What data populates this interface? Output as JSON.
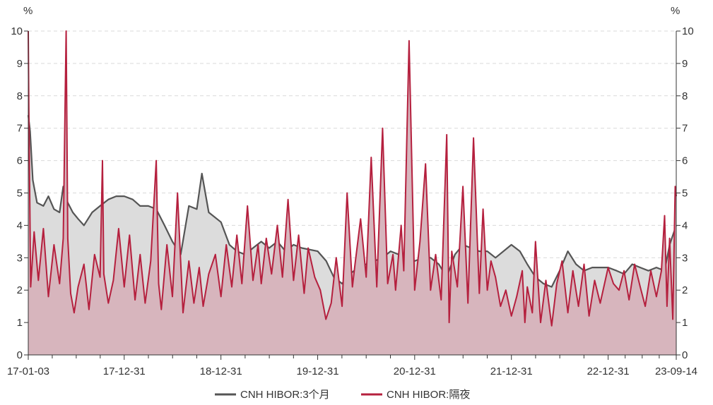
{
  "chart_data": {
    "type": "area",
    "left_axis_unit": "%",
    "right_axis_unit": "%",
    "y_range": [
      0,
      10
    ],
    "y_ticks": [
      0,
      1,
      2,
      3,
      4,
      5,
      6,
      7,
      8,
      9,
      10
    ],
    "x_range": [
      "2017-01-03",
      "2023-09-14"
    ],
    "x_tick_labels": [
      "17-01-03",
      "17-12-31",
      "18-12-31",
      "19-12-31",
      "20-12-31",
      "21-12-31",
      "22-12-31",
      "23-09-14"
    ],
    "x_tick_dates": [
      "2017-01-03",
      "2017-12-31",
      "2018-12-31",
      "2019-12-31",
      "2020-12-31",
      "2021-12-31",
      "2022-12-31",
      "2023-09-14"
    ],
    "grid": "horizontal dashed",
    "legend_position": "bottom-center",
    "colors": {
      "three_month": "#555555",
      "three_month_fill": "#dcdcdc",
      "overnight": "#b5203e",
      "overnight_fill": "#d7b5bd"
    },
    "series": [
      {
        "name": "CNH HIBOR:3个月",
        "x": [
          "2017-01-03",
          "2017-01-10",
          "2017-01-20",
          "2017-02-05",
          "2017-03-01",
          "2017-03-20",
          "2017-04-10",
          "2017-05-01",
          "2017-05-15",
          "2017-06-01",
          "2017-06-20",
          "2017-07-10",
          "2017-08-01",
          "2017-09-01",
          "2017-10-01",
          "2017-11-01",
          "2017-12-01",
          "2017-12-31",
          "2018-02-01",
          "2018-03-01",
          "2018-04-01",
          "2018-05-01",
          "2018-06-01",
          "2018-07-01",
          "2018-08-01",
          "2018-09-01",
          "2018-10-01",
          "2018-10-20",
          "2018-11-15",
          "2018-12-31",
          "2019-02-01",
          "2019-03-01",
          "2019-04-01",
          "2019-05-01",
          "2019-06-01",
          "2019-07-01",
          "2019-08-01",
          "2019-09-01",
          "2019-10-01",
          "2019-11-01",
          "2019-12-31",
          "2020-02-01",
          "2020-03-01",
          "2020-04-01",
          "2020-05-01",
          "2020-06-01",
          "2020-07-01",
          "2020-08-01",
          "2020-09-01",
          "2020-10-01",
          "2020-11-01",
          "2020-12-31",
          "2021-02-01",
          "2021-03-01",
          "2021-04-01",
          "2021-05-01",
          "2021-06-01",
          "2021-07-01",
          "2021-08-01",
          "2021-09-01",
          "2021-10-01",
          "2021-11-01",
          "2021-12-31",
          "2022-02-01",
          "2022-03-01",
          "2022-04-01",
          "2022-05-01",
          "2022-06-01",
          "2022-07-01",
          "2022-08-01",
          "2022-09-01",
          "2022-10-01",
          "2022-11-01",
          "2022-12-31",
          "2023-02-01",
          "2023-03-01",
          "2023-04-01",
          "2023-05-01",
          "2023-06-01",
          "2023-07-01",
          "2023-08-01",
          "2023-08-20",
          "2023-09-14"
        ],
        "values": [
          7.4,
          6.9,
          5.4,
          4.7,
          4.6,
          4.9,
          4.5,
          4.4,
          5.2,
          4.7,
          4.4,
          4.2,
          4.0,
          4.4,
          4.6,
          4.8,
          4.9,
          4.9,
          4.8,
          4.6,
          4.6,
          4.5,
          4.0,
          3.5,
          3.1,
          4.6,
          4.5,
          5.6,
          4.4,
          4.1,
          3.4,
          3.2,
          3.1,
          3.3,
          3.5,
          3.3,
          3.5,
          3.2,
          3.4,
          3.3,
          3.2,
          2.9,
          2.4,
          2.2,
          2.5,
          2.7,
          2.8,
          2.9,
          3.0,
          3.2,
          3.1,
          2.9,
          3.0,
          3.0,
          2.8,
          2.4,
          3.1,
          3.4,
          3.3,
          3.2,
          3.2,
          3.0,
          3.4,
          3.2,
          2.8,
          2.4,
          2.2,
          2.1,
          2.6,
          3.2,
          2.8,
          2.6,
          2.7,
          2.7,
          2.6,
          2.5,
          2.8,
          2.7,
          2.6,
          2.7,
          2.6,
          3.4,
          4.0
        ]
      },
      {
        "name": "CNH HIBOR:隔夜",
        "x": [
          "2017-01-03",
          "2017-01-05",
          "2017-01-12",
          "2017-01-25",
          "2017-02-10",
          "2017-03-01",
          "2017-03-20",
          "2017-04-10",
          "2017-05-01",
          "2017-05-15",
          "2017-05-22",
          "2017-05-26",
          "2017-06-01",
          "2017-06-12",
          "2017-06-25",
          "2017-07-10",
          "2017-08-01",
          "2017-08-20",
          "2017-09-10",
          "2017-10-01",
          "2017-10-10",
          "2017-10-15",
          "2017-11-01",
          "2017-11-20",
          "2017-12-10",
          "2017-12-31",
          "2018-01-20",
          "2018-02-10",
          "2018-03-01",
          "2018-03-20",
          "2018-04-10",
          "2018-05-01",
          "2018-05-10",
          "2018-05-20",
          "2018-06-10",
          "2018-07-01",
          "2018-07-20",
          "2018-08-10",
          "2018-09-01",
          "2018-09-20",
          "2018-10-10",
          "2018-10-25",
          "2018-11-15",
          "2018-12-10",
          "2018-12-31",
          "2019-01-20",
          "2019-02-10",
          "2019-03-01",
          "2019-03-20",
          "2019-04-10",
          "2019-05-01",
          "2019-05-20",
          "2019-06-01",
          "2019-06-20",
          "2019-07-10",
          "2019-08-01",
          "2019-08-20",
          "2019-09-10",
          "2019-10-01",
          "2019-10-20",
          "2019-11-10",
          "2019-11-25",
          "2019-12-20",
          "2020-01-10",
          "2020-01-31",
          "2020-02-20",
          "2020-03-10",
          "2020-04-01",
          "2020-04-20",
          "2020-05-10",
          "2020-05-20",
          "2020-06-10",
          "2020-07-01",
          "2020-07-20",
          "2020-08-10",
          "2020-09-01",
          "2020-09-20",
          "2020-10-10",
          "2020-10-20",
          "2020-11-10",
          "2020-11-20",
          "2020-12-10",
          "2020-12-31",
          "2021-01-20",
          "2021-02-10",
          "2021-03-01",
          "2021-03-20",
          "2021-04-10",
          "2021-05-01",
          "2021-05-10",
          "2021-05-20",
          "2021-06-10",
          "2021-07-01",
          "2021-07-20",
          "2021-08-10",
          "2021-09-01",
          "2021-09-15",
          "2021-10-01",
          "2021-10-15",
          "2021-11-01",
          "2021-11-20",
          "2021-12-10",
          "2021-12-31",
          "2022-01-20",
          "2022-02-10",
          "2022-02-20",
          "2022-03-01",
          "2022-03-20",
          "2022-04-01",
          "2022-04-20",
          "2022-05-10",
          "2022-06-01",
          "2022-06-20",
          "2022-07-10",
          "2022-08-01",
          "2022-08-20",
          "2022-09-10",
          "2022-10-01",
          "2022-10-20",
          "2022-11-10",
          "2022-12-01",
          "2022-12-31",
          "2023-01-20",
          "2023-02-10",
          "2023-03-01",
          "2023-03-20",
          "2023-04-10",
          "2023-05-01",
          "2023-05-20",
          "2023-06-10",
          "2023-07-01",
          "2023-07-20",
          "2023-08-01",
          "2023-08-10",
          "2023-08-20",
          "2023-09-01",
          "2023-09-10",
          "2023-09-14"
        ],
        "values": [
          10.0,
          7.6,
          2.1,
          3.8,
          2.3,
          3.9,
          1.8,
          3.4,
          2.2,
          3.6,
          7.7,
          10.0,
          3.6,
          1.9,
          1.3,
          2.1,
          2.8,
          1.4,
          3.1,
          2.4,
          6.0,
          2.5,
          1.6,
          2.3,
          3.9,
          2.1,
          3.7,
          1.7,
          3.1,
          1.6,
          2.9,
          6.0,
          2.2,
          1.4,
          3.4,
          1.8,
          5.0,
          1.3,
          2.9,
          1.6,
          2.7,
          1.5,
          2.5,
          3.1,
          1.8,
          3.4,
          2.1,
          3.7,
          2.2,
          4.6,
          2.3,
          3.4,
          2.2,
          3.6,
          2.5,
          4.0,
          2.4,
          4.8,
          2.3,
          3.7,
          1.9,
          3.3,
          2.4,
          2.0,
          1.1,
          1.6,
          3.0,
          1.5,
          5.0,
          2.1,
          2.8,
          4.2,
          2.4,
          6.1,
          2.1,
          7.0,
          2.2,
          3.1,
          2.0,
          4.0,
          2.6,
          9.7,
          2.0,
          3.5,
          5.9,
          2.0,
          3.1,
          1.7,
          6.8,
          1.0,
          3.2,
          2.1,
          5.2,
          1.6,
          6.7,
          1.9,
          4.5,
          2.0,
          2.9,
          2.4,
          1.5,
          2.0,
          1.2,
          1.8,
          2.6,
          1.0,
          2.1,
          1.3,
          3.5,
          1.0,
          2.3,
          0.9,
          2.2,
          2.9,
          1.3,
          2.6,
          1.5,
          2.8,
          1.2,
          2.3,
          1.6,
          2.7,
          2.2,
          2.0,
          2.6,
          1.7,
          2.8,
          2.1,
          1.5,
          2.6,
          1.8,
          2.6,
          4.3,
          1.5,
          3.6,
          1.1,
          5.2,
          4.9
        ]
      }
    ]
  }
}
